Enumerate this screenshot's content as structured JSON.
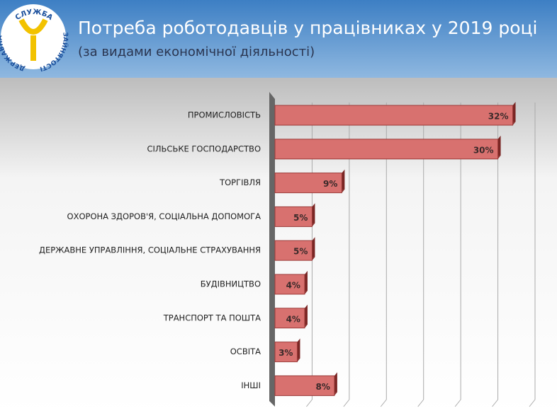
{
  "header": {
    "title": "Потреба роботодавців у працівниках у 2019 році",
    "subtitle": "(за видами економічної діяльності)",
    "logo_top": "СЛУЖБА",
    "logo_left": "ДЕРЖАВНА",
    "logo_right": "ЗАЙНЯТОСТІ"
  },
  "chart_data": {
    "type": "hbar",
    "categories": [
      "ПРОМИСЛОВІСТЬ",
      "СІЛЬСЬКЕ ГОСПОДАРСТВО",
      "ТОРГІВЛЯ",
      "ОХОРОНА ЗДОРОВ'Я, СОЦІАЛЬНА ДОПОМОГА",
      "ДЕРЖАВНЕ УПРАВЛІННЯ, СОЦІАЛЬНЕ СТРАХУВАННЯ",
      "БУДІВНИЦТВО",
      "ТРАНСПОРТ ТА ПОШТА",
      "ОСВІТА",
      "ІНШІ"
    ],
    "values": [
      32,
      30,
      9,
      5,
      5,
      4,
      4,
      3,
      8
    ],
    "value_labels": [
      "32%",
      "30%",
      "9%",
      "5%",
      "5%",
      "4%",
      "4%",
      "3%",
      "8%"
    ],
    "color": "#d8716f",
    "xlim": [
      0,
      35
    ],
    "xticks": [
      0,
      5,
      10,
      15,
      20,
      25,
      30,
      35
    ],
    "grid": true
  }
}
